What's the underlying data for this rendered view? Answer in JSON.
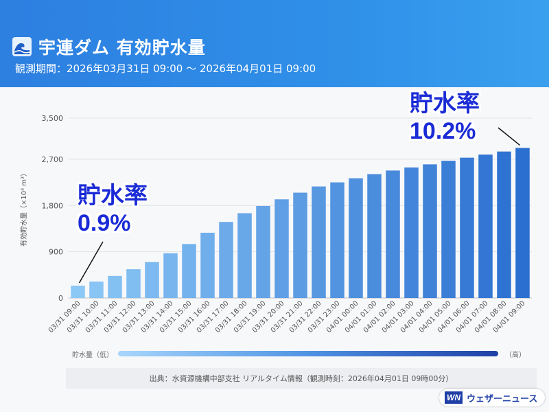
{
  "header": {
    "title": "宇連ダム 有効貯水量",
    "period": "観測期間：2026年03月31日 09:00 〜 2026年04月01日 09:00",
    "icon": "wave-icon"
  },
  "annotations": {
    "start": {
      "label": "貯水率",
      "value": "0.9%"
    },
    "end": {
      "label": "貯水率",
      "value": "10.2%"
    }
  },
  "scale": {
    "low": "貯水量（低）",
    "high": "（高）"
  },
  "source": "出典：水資源機構中部支社 リアルタイム情報（観測時刻：2026年04月01日 09時00分）",
  "logo": {
    "mark": "WN",
    "text": "ウェザーニュース"
  },
  "colors": {
    "header": "#2f8fe8",
    "bar_light": "#8cc8f6",
    "bar_dark": "#2b6fd0",
    "annotation": "#1a2bd6"
  },
  "chart_data": {
    "type": "bar",
    "ylabel": "有効貯水量（×10³ m³）",
    "yticks": [
      "0",
      "900",
      "1,800",
      "2,700",
      "3,500"
    ],
    "ylim": [
      0,
      3500
    ],
    "grid": true,
    "categories": [
      "03/31 09:00",
      "03/31 10:00",
      "03/31 11:00",
      "03/31 12:00",
      "03/31 13:00",
      "03/31 14:00",
      "03/31 15:00",
      "03/31 16:00",
      "03/31 17:00",
      "03/31 18:00",
      "03/31 19:00",
      "03/31 20:00",
      "03/31 21:00",
      "03/31 22:00",
      "03/31 23:00",
      "04/01 00:00",
      "04/01 01:00",
      "04/01 02:00",
      "04/01 03:00",
      "04/01 04:00",
      "04/01 05:00",
      "04/01 06:00",
      "04/01 07:00",
      "04/01 08:00",
      "04/01 09:00"
    ],
    "values": [
      240,
      320,
      430,
      560,
      700,
      870,
      1050,
      1270,
      1480,
      1650,
      1790,
      1920,
      2050,
      2170,
      2250,
      2330,
      2410,
      2480,
      2540,
      2600,
      2670,
      2730,
      2790,
      2850,
      2920
    ]
  }
}
